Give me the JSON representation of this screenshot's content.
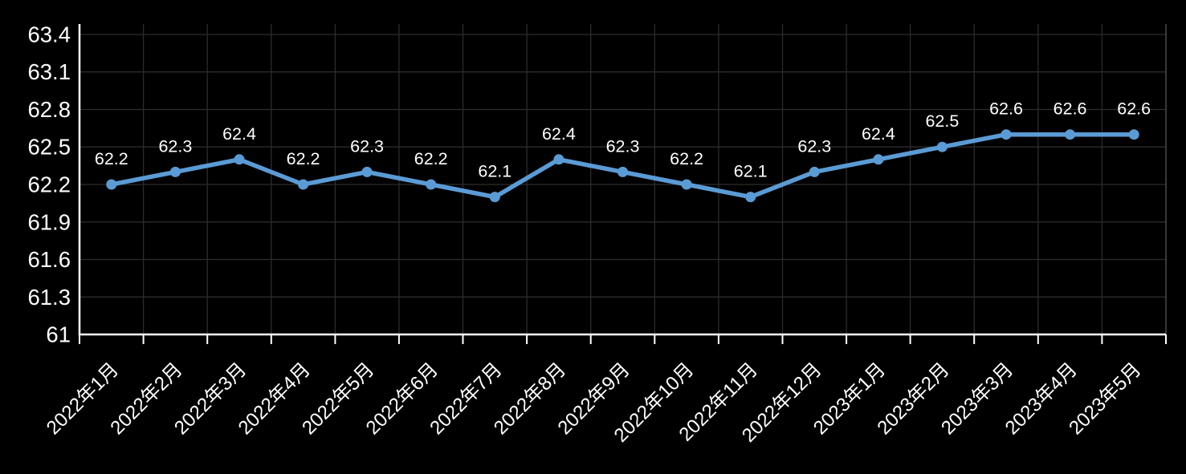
{
  "chart_data": {
    "type": "line",
    "title": "",
    "categories": [
      "2022年1月",
      "2022年2月",
      "2022年3月",
      "2022年4月",
      "2022年5月",
      "2022年6月",
      "2022年7月",
      "2022年8月",
      "2022年9月",
      "2022年10月",
      "2022年11月",
      "2022年12月",
      "2023年1月",
      "2023年2月",
      "2023年3月",
      "2023年4月",
      "2023年5月"
    ],
    "series": [
      {
        "name": "series-1",
        "values": [
          62.2,
          62.3,
          62.4,
          62.2,
          62.3,
          62.2,
          62.1,
          62.4,
          62.3,
          62.2,
          62.1,
          62.3,
          62.4,
          62.5,
          62.6,
          62.6,
          62.6
        ],
        "data_labels": [
          "62.2",
          "62.3",
          "62.4",
          "62.2",
          "62.3",
          "62.2",
          "62.1",
          "62.4",
          "62.3",
          "62.2",
          "62.1",
          "62.3",
          "62.4",
          "62.5",
          "62.6",
          "62.6",
          "62.6"
        ]
      }
    ],
    "xlabel": "",
    "ylabel": "",
    "y_tick_labels": [
      "63.4",
      "63.1",
      "62.8",
      "62.5",
      "62.2",
      "61.9",
      "61.6",
      "61.3",
      "61"
    ],
    "ylim": [
      61,
      63.4
    ],
    "grid": true,
    "legend_position": "none",
    "colors": {
      "background": "#000000",
      "line": "#5B9BD5",
      "marker": "#5B9BD5",
      "gridline": "#2c2c2c",
      "plot_border": "#4a4a4a",
      "axis": "#ffffff",
      "label_text": "#ffffff",
      "tick_text": "#ffffff"
    }
  }
}
